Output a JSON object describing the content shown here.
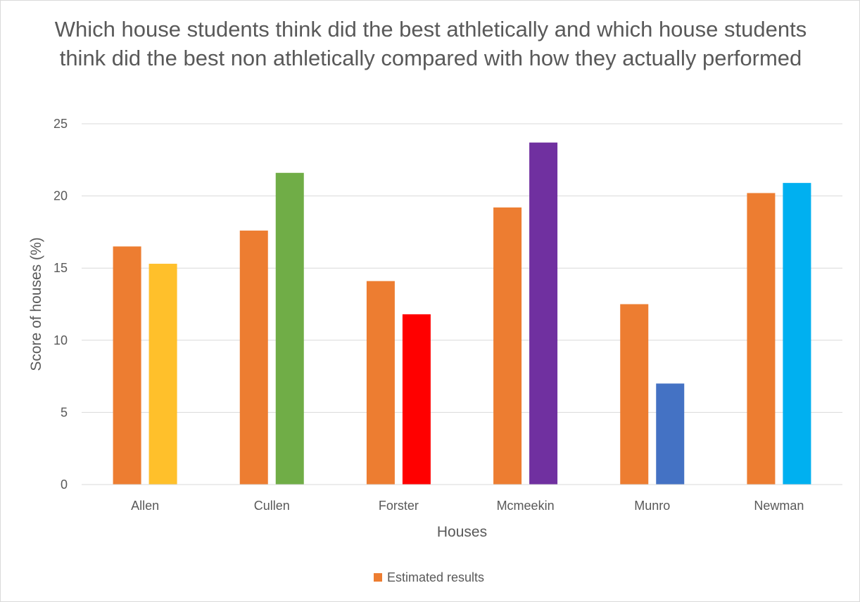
{
  "chart_data": {
    "type": "bar",
    "title": "Which house students think did the best athletically and which house students think did the best non athletically compared with how they actually performed",
    "xlabel": "Houses",
    "ylabel": "Score of houses (%)",
    "ylim": [
      0,
      25
    ],
    "yticks": [
      0,
      5,
      10,
      15,
      20,
      25
    ],
    "ytick_labels": [
      "0",
      "5",
      "10",
      "15",
      "20",
      "25"
    ],
    "grid": true,
    "legend_position": "bottom",
    "categories": [
      "Allen",
      "Cullen",
      "Forster",
      "Mcmeekin",
      "Munro",
      "Newman"
    ],
    "series": [
      {
        "name": "Estimated results",
        "values": [
          16.5,
          17.6,
          14.1,
          19.2,
          12.5,
          20.2
        ],
        "colors": [
          "#ed7d31",
          "#ed7d31",
          "#ed7d31",
          "#ed7d31",
          "#ed7d31",
          "#ed7d31"
        ]
      },
      {
        "values": [
          15.3,
          21.6,
          11.8,
          23.7,
          7.0,
          20.9
        ],
        "colors": [
          "#ffc02b",
          "#70ad47",
          "#ff0000",
          "#7030a0",
          "#4472c4",
          "#00b0f0"
        ]
      }
    ],
    "legend": [
      {
        "label": "Estimated results",
        "color": "#ed7d31"
      }
    ]
  }
}
